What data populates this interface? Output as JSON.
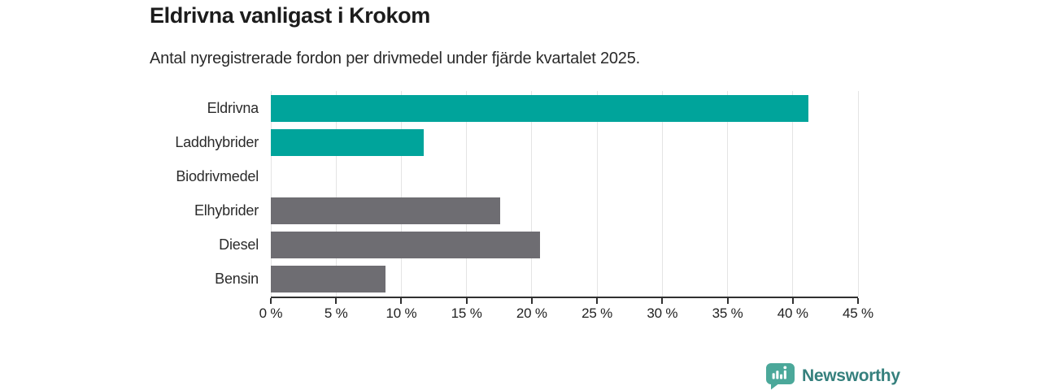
{
  "chart_data": {
    "type": "bar",
    "orientation": "horizontal",
    "title": "Eldrivna vanligast i Krokom",
    "subtitle": "Antal nyregistrerade fordon per drivmedel under fjärde kvartalet 2025.",
    "categories": [
      "Eldrivna",
      "Laddhybrider",
      "Biodrivmedel",
      "Elhybrider",
      "Diesel",
      "Bensin"
    ],
    "values": [
      41.2,
      11.7,
      0,
      17.6,
      20.6,
      8.8
    ],
    "unit": "%",
    "xlim": [
      0,
      45
    ],
    "x_ticks": [
      0,
      5,
      10,
      15,
      20,
      25,
      30,
      35,
      40,
      45
    ],
    "x_tick_labels": [
      "0 %",
      "5 %",
      "10 %",
      "15 %",
      "20 %",
      "25 %",
      "30 %",
      "35 %",
      "40 %",
      "45 %"
    ],
    "bar_colors": [
      "#00a49b",
      "#00a49b",
      "#00a49b",
      "#6e6d72",
      "#6e6d72",
      "#6e6d72"
    ],
    "grid": true,
    "legend": false
  },
  "colors": {
    "teal_accent": "#00a49b",
    "gray_bar": "#6e6d72",
    "gridline": "#e4e4e4",
    "axis": "#303030",
    "title_text": "#1c1c1c",
    "label_text": "#2b2b2b",
    "logo_icon": "#4ba89a",
    "logo_text": "#35807d",
    "background": "#ffffff"
  },
  "footer": {
    "brand": "Newsworthy"
  }
}
